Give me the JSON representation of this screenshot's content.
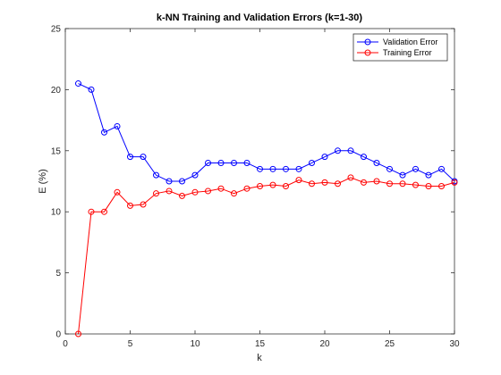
{
  "chart_data": {
    "type": "line",
    "title": "k-NN Training and Validation Errors (k=1-30)",
    "xlabel": "k",
    "ylabel": "E (%)",
    "xlim": [
      0,
      30
    ],
    "ylim": [
      0,
      25
    ],
    "xticks": [
      0,
      5,
      10,
      15,
      20,
      25,
      30
    ],
    "yticks": [
      0,
      5,
      10,
      15,
      20,
      25
    ],
    "grid": false,
    "legend_position": "top-right",
    "x": [
      1,
      2,
      3,
      4,
      5,
      6,
      7,
      8,
      9,
      10,
      11,
      12,
      13,
      14,
      15,
      16,
      17,
      18,
      19,
      20,
      21,
      22,
      23,
      24,
      25,
      26,
      27,
      28,
      29,
      30
    ],
    "series": [
      {
        "name": "Validation Error",
        "color": "#0000ff",
        "marker": "circle",
        "values": [
          20.5,
          20,
          16.5,
          17,
          14.5,
          14.5,
          13,
          12.5,
          12.5,
          13,
          14,
          14,
          14,
          14,
          13.5,
          13.5,
          13.5,
          13.5,
          14,
          14.5,
          15,
          15,
          14.5,
          14,
          13.5,
          13,
          13.5,
          13,
          13.5,
          12.5
        ]
      },
      {
        "name": "Training Error",
        "color": "#ff0000",
        "marker": "circle",
        "values": [
          0,
          10,
          10,
          11.6,
          10.5,
          10.6,
          11.5,
          11.7,
          11.3,
          11.6,
          11.7,
          11.9,
          11.5,
          11.9,
          12.1,
          12.2,
          12.1,
          12.6,
          12.3,
          12.4,
          12.3,
          12.8,
          12.4,
          12.5,
          12.3,
          12.3,
          12.2,
          12.1,
          12.1,
          12.4
        ]
      }
    ]
  }
}
